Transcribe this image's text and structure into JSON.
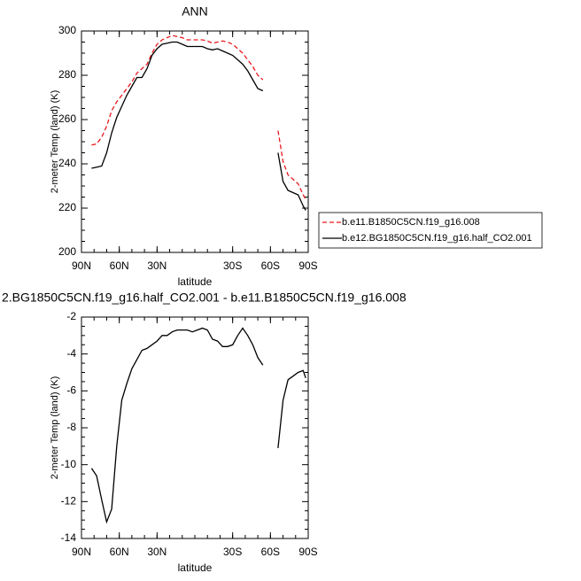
{
  "chart_data": [
    {
      "type": "line",
      "title": "ANN",
      "xlabel": "latitude",
      "ylabel": "2-meter Temp (land) (K)",
      "x": [
        82,
        78,
        74,
        70,
        66,
        62,
        58,
        54,
        50,
        46,
        42,
        38,
        34,
        30,
        26,
        22,
        18,
        14,
        10,
        6,
        2,
        -2,
        -6,
        -10,
        -14,
        -18,
        -22,
        -26,
        -30,
        -34,
        -38,
        -42,
        -46,
        -50,
        -54,
        -58,
        -62,
        -66,
        -70,
        -74,
        -78,
        -82,
        -86,
        -88
      ],
      "series": [
        {
          "name": "b.e11.B1850C5CN.f19_g16.008",
          "color": "#e8191f",
          "style": "dashed",
          "values": [
            248.5,
            249,
            252,
            257,
            264,
            268,
            271,
            274,
            277,
            281,
            283,
            285,
            290,
            294,
            296,
            297,
            298,
            297.5,
            297,
            296,
            296,
            296,
            296,
            295.5,
            294.5,
            295,
            295.5,
            295,
            294,
            292,
            290,
            287,
            284,
            280,
            278,
            null,
            null,
            255,
            241,
            235,
            233,
            231,
            226,
            224
          ]
        },
        {
          "name": "b.e12.BG1850C5CN.f19_g16.half_CO2.001",
          "color": "#000000",
          "style": "solid",
          "values": [
            238,
            238.5,
            239,
            245,
            254,
            261,
            266,
            271,
            275,
            279,
            279,
            283,
            289,
            292,
            294,
            294.5,
            295,
            295,
            294,
            293,
            293,
            293,
            293,
            292,
            291.5,
            292,
            291,
            290,
            289,
            287,
            285,
            282,
            278,
            274,
            273,
            null,
            null,
            245,
            232,
            228,
            227,
            226,
            221,
            219
          ]
        }
      ],
      "xlim": [
        90,
        -90
      ],
      "xticks": [
        {
          "value": 90,
          "label": "90N"
        },
        {
          "value": 60,
          "label": "60N"
        },
        {
          "value": 30,
          "label": "30N"
        },
        {
          "value": -30,
          "label": "30S"
        },
        {
          "value": -60,
          "label": "60S"
        },
        {
          "value": -90,
          "label": "90S"
        }
      ],
      "ylim": [
        200,
        300
      ],
      "yticks": [
        200,
        220,
        240,
        260,
        280,
        300
      ]
    },
    {
      "type": "line",
      "title": "2.BG1850C5CN.f19_g16.half_CO2.001 - b.e11.B1850C5CN.f19_g16.008",
      "xlabel": "latitude",
      "ylabel": "2-meter Temp (land) (K)",
      "x": [
        82,
        78,
        74,
        70,
        66,
        62,
        58,
        54,
        50,
        46,
        42,
        38,
        34,
        30,
        26,
        22,
        18,
        14,
        10,
        6,
        2,
        -2,
        -6,
        -10,
        -14,
        -18,
        -22,
        -26,
        -30,
        -34,
        -38,
        -42,
        -46,
        -50,
        -54,
        -58,
        -62,
        -66,
        -70,
        -74,
        -78,
        -82,
        -86,
        -88
      ],
      "series": [
        {
          "color": "#000000",
          "style": "solid",
          "values": [
            -10.2,
            -10.6,
            -11.9,
            -13.1,
            -12.4,
            -9,
            -6.5,
            -5.6,
            -4.8,
            -4.3,
            -3.8,
            -3.7,
            -3.5,
            -3.3,
            -3,
            -3,
            -2.8,
            -2.7,
            -2.7,
            -2.7,
            -2.8,
            -2.7,
            -2.6,
            -2.7,
            -3.2,
            -3.3,
            -3.6,
            -3.6,
            -3.5,
            -3,
            -2.6,
            -3,
            -3.5,
            -4.2,
            -4.6,
            null,
            null,
            -9.1,
            -6.5,
            -5.4,
            -5.2,
            -5,
            -4.9,
            -5.3
          ]
        }
      ],
      "xlim": [
        90,
        -90
      ],
      "xticks": [
        {
          "value": 90,
          "label": "90N"
        },
        {
          "value": 60,
          "label": "60N"
        },
        {
          "value": 30,
          "label": "30N"
        },
        {
          "value": -30,
          "label": "30S"
        },
        {
          "value": -60,
          "label": "60S"
        },
        {
          "value": -90,
          "label": "90S"
        }
      ],
      "ylim": [
        -14,
        -2
      ],
      "yticks": [
        -14,
        -12,
        -10,
        -8,
        -6,
        -4,
        -2
      ]
    }
  ]
}
